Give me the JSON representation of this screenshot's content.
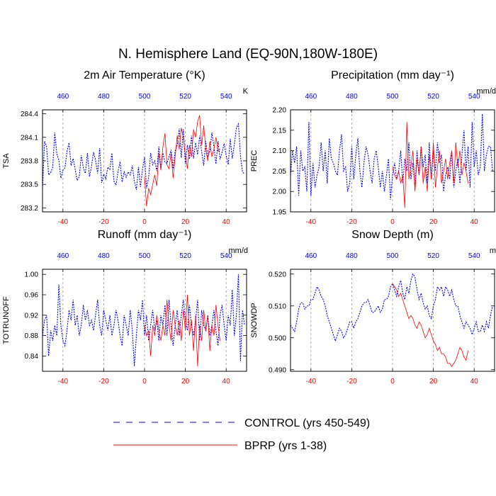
{
  "figure": {
    "title": "N. Hemisphere Land (EQ-90N,180W-180E)"
  },
  "legend": {
    "entries": [
      {
        "label": "CONTROL (yrs 450-549)",
        "color": "#0000ff",
        "dash": true
      },
      {
        "label": "BPRP (yrs 1-38)",
        "color": "#ff0000",
        "dash": false
      }
    ]
  },
  "chart_data": [
    {
      "type": "line",
      "title": "2m Air Temperature (°K)",
      "ylabel": "TSA",
      "unit": "K",
      "xlim": [
        -50,
        50
      ],
      "top_xlim": [
        450,
        550
      ],
      "ylim": [
        283.15,
        284.45
      ],
      "bottom_ticks": [
        "-40",
        "-20",
        "0",
        "20",
        "40"
      ],
      "top_ticks": [
        "460",
        "480",
        "500",
        "520",
        "540"
      ],
      "y_ticks": [
        283.2,
        283.5,
        283.8,
        284.1,
        284.4
      ],
      "y_tick_labels": [
        "283.2",
        "283.5",
        "283.8",
        "284.1",
        "284.4"
      ],
      "control": {
        "name": "CONTROL",
        "x_start": -50,
        "values": [
          283.45,
          284.05,
          283.98,
          283.62,
          283.65,
          283.72,
          284.16,
          283.89,
          283.81,
          283.58,
          283.68,
          283.71,
          283.92,
          284.03,
          283.74,
          283.83,
          283.69,
          283.55,
          283.6,
          283.87,
          283.71,
          283.64,
          283.9,
          283.6,
          283.73,
          283.91,
          283.81,
          283.64,
          283.96,
          283.52,
          283.63,
          283.57,
          283.72,
          283.69,
          283.9,
          283.54,
          283.49,
          283.66,
          283.79,
          283.53,
          283.66,
          283.59,
          283.66,
          283.62,
          283.74,
          283.54,
          283.43,
          283.72,
          283.47,
          283.69,
          283.85,
          283.45,
          283.59,
          283.9,
          283.75,
          283.8,
          283.67,
          283.98,
          283.71,
          283.9,
          283.78,
          283.77,
          283.85,
          283.94,
          283.7,
          283.93,
          284.0,
          284.21,
          283.84,
          284.2,
          283.76,
          284.0,
          283.82,
          284.12,
          283.83,
          284.03,
          283.88,
          284.12,
          283.91,
          283.74,
          284.05,
          283.86,
          283.92,
          284.16,
          283.98,
          283.76,
          284.05,
          283.82,
          283.91,
          284.02,
          283.87,
          283.75,
          284.08,
          283.83,
          284.01,
          284.22,
          284.27,
          283.86,
          283.66,
          283.63
        ]
      },
      "bprp": {
        "name": "BPRP",
        "x_start": 0,
        "values": [
          283.6,
          283.22,
          283.45,
          283.37,
          283.5,
          283.62,
          283.48,
          283.9,
          283.68,
          283.98,
          284.15,
          283.75,
          283.7,
          283.9,
          283.58,
          283.85,
          284.12,
          283.95,
          284.22,
          284.1,
          283.88,
          283.7,
          284.0,
          283.85,
          284.2,
          284.1,
          284.3,
          284.38,
          284.0,
          284.25,
          283.95,
          283.8,
          284.05,
          283.85,
          283.95,
          284.1,
          283.92,
          283.95
        ]
      }
    },
    {
      "type": "line",
      "title": "Precipitation (mm day⁻¹)",
      "ylabel": "PREC",
      "unit": "mm/d",
      "xlim": [
        -50,
        50
      ],
      "top_xlim": [
        450,
        550
      ],
      "ylim": [
        1.95,
        2.2
      ],
      "bottom_ticks": [
        "-40",
        "-20",
        "0",
        "20",
        "40"
      ],
      "top_ticks": [
        "460",
        "480",
        "500",
        "520",
        "540"
      ],
      "y_ticks": [
        1.95,
        2.0,
        2.05,
        2.1,
        2.15,
        2.2
      ],
      "y_tick_labels": [
        "1.95",
        "2.00",
        "2.05",
        "2.10",
        "2.15",
        "2.20"
      ],
      "control": {
        "name": "CONTROL",
        "x_start": -50,
        "values": [
          2.04,
          2.1,
          2.07,
          2.11,
          1.99,
          2.1,
          2.05,
          2.06,
          2.0,
          2.17,
          1.99,
          2.07,
          2.01,
          2.04,
          2.06,
          2.12,
          2.05,
          2.1,
          2.02,
          2.13,
          2.08,
          2.07,
          2.05,
          2.04,
          2.1,
          2.14,
          2.05,
          2.06,
          2.0,
          2.02,
          2.11,
          2.03,
          2.09,
          2.13,
          2.05,
          2.01,
          2.07,
          2.11,
          2.09,
          2.05,
          2.02,
          2.08,
          2.1,
          2.06,
          2.01,
          2.05,
          2.0,
          2.04,
          2.08,
          1.98,
          2.04,
          2.07,
          2.03,
          2.05,
          2.1,
          2.02,
          2.08,
          2.05,
          2.12,
          2.03,
          2.07,
          2.01,
          2.1,
          2.04,
          2.11,
          2.06,
          2.09,
          2.02,
          2.12,
          2.03,
          2.1,
          2.05,
          2.12,
          2.07,
          2.09,
          2.0,
          2.04,
          2.06,
          2.03,
          2.1,
          2.01,
          2.05,
          2.08,
          2.02,
          2.09,
          2.15,
          2.05,
          2.11,
          2.01,
          2.17,
          2.06,
          2.1,
          2.04,
          2.06,
          2.19,
          2.05,
          2.09,
          2.11,
          2.11,
          2.05
        ]
      },
      "bprp": {
        "name": "BPRP",
        "x_start": 0,
        "values": [
          2.06,
          2.04,
          2.03,
          2.05,
          2.02,
          2.04,
          1.96,
          2.17,
          2.03,
          2.06,
          2.1,
          2.0,
          2.08,
          2.04,
          2.11,
          2.02,
          2.06,
          2.0,
          2.09,
          2.03,
          2.12,
          2.01,
          2.06,
          2.1,
          2.02,
          2.05,
          2.08,
          2.03,
          2.07,
          2.1,
          2.02,
          2.12,
          2.06,
          2.1,
          2.04,
          2.07,
          2.05,
          2.02
        ]
      }
    },
    {
      "type": "line",
      "title": "Runoff (mm day⁻¹)",
      "ylabel": "TOTRUNOFF",
      "unit": "mm/d",
      "xlim": [
        -50,
        50
      ],
      "top_xlim": [
        450,
        550
      ],
      "ylim": [
        0.81,
        1.01
      ],
      "bottom_ticks": [
        "-40",
        "-20",
        "0",
        "20",
        "40"
      ],
      "top_ticks": [
        "460",
        "480",
        "500",
        "520",
        "540"
      ],
      "y_ticks": [
        0.84,
        0.88,
        0.92,
        0.96,
        1.0
      ],
      "y_tick_labels": [
        "0.84",
        "0.88",
        "0.92",
        "0.96",
        "1.00"
      ],
      "control": {
        "name": "CONTROL",
        "x_start": -50,
        "values": [
          0.88,
          0.91,
          0.92,
          0.84,
          0.89,
          0.87,
          0.9,
          0.88,
          0.98,
          0.9,
          0.87,
          0.86,
          0.89,
          0.93,
          0.91,
          0.95,
          0.9,
          0.92,
          0.88,
          0.9,
          0.94,
          0.91,
          0.93,
          0.9,
          0.91,
          0.89,
          0.92,
          0.95,
          0.9,
          0.88,
          0.93,
          0.91,
          0.89,
          0.92,
          0.88,
          0.9,
          0.93,
          0.91,
          0.88,
          0.86,
          0.92,
          0.9,
          0.88,
          0.93,
          0.89,
          0.82,
          0.88,
          0.93,
          0.91,
          0.95,
          0.88,
          0.92,
          0.87,
          0.9,
          0.93,
          0.89,
          0.91,
          0.87,
          0.92,
          0.9,
          0.94,
          0.88,
          0.95,
          0.9,
          0.86,
          0.9,
          0.93,
          0.88,
          0.92,
          0.95,
          0.91,
          0.89,
          0.94,
          0.9,
          0.88,
          0.91,
          0.95,
          0.87,
          0.93,
          0.9,
          0.89,
          0.92,
          0.88,
          0.9,
          0.93,
          0.89,
          0.86,
          0.92,
          0.94,
          0.9,
          0.87,
          0.92,
          0.9,
          0.97,
          0.88,
          0.92,
          1.0,
          0.83,
          0.93,
          0.9
        ]
      },
      "bprp": {
        "name": "BPRP",
        "x_start": 0,
        "values": [
          0.9,
          0.88,
          0.89,
          0.84,
          0.9,
          0.88,
          0.92,
          0.89,
          0.87,
          0.9,
          0.88,
          0.95,
          0.9,
          0.87,
          0.93,
          0.9,
          0.88,
          0.91,
          0.87,
          0.93,
          0.89,
          0.96,
          0.88,
          0.91,
          0.85,
          0.92,
          0.82,
          0.9,
          0.87,
          0.93,
          0.89,
          0.92,
          0.85,
          0.9,
          0.88,
          0.94,
          0.9,
          0.87
        ]
      }
    },
    {
      "type": "line",
      "title": "Snow Depth (m)",
      "ylabel": "SNOWDP",
      "unit": "m",
      "xlim": [
        -50,
        50
      ],
      "top_xlim": [
        450,
        550
      ],
      "ylim": [
        0.4895,
        0.5215
      ],
      "bottom_ticks": [
        "-40",
        "-20",
        "0",
        "20",
        "40"
      ],
      "top_ticks": [
        "460",
        "480",
        "500",
        "520",
        "540"
      ],
      "y_ticks": [
        0.49,
        0.5,
        0.51,
        0.52
      ],
      "y_tick_labels": [
        "0.490",
        "0.500",
        "0.510",
        "0.520"
      ],
      "control": {
        "name": "CONTROL",
        "x_start": -50,
        "values": [
          0.504,
          0.503,
          0.502,
          0.505,
          0.509,
          0.511,
          0.511,
          0.509,
          0.51,
          0.51,
          0.512,
          0.512,
          0.514,
          0.516,
          0.515,
          0.513,
          0.512,
          0.51,
          0.507,
          0.505,
          0.503,
          0.501,
          0.499,
          0.501,
          0.503,
          0.502,
          0.5,
          0.501,
          0.503,
          0.505,
          0.505,
          0.503,
          0.505,
          0.506,
          0.508,
          0.51,
          0.511,
          0.511,
          0.512,
          0.51,
          0.508,
          0.508,
          0.509,
          0.51,
          0.508,
          0.509,
          0.512,
          0.512,
          0.513,
          0.516,
          0.517,
          0.515,
          0.513,
          0.516,
          0.518,
          0.514,
          0.512,
          0.516,
          0.514,
          0.518,
          0.52,
          0.519,
          0.515,
          0.512,
          0.514,
          0.511,
          0.509,
          0.51,
          0.507,
          0.506,
          0.51,
          0.512,
          0.516,
          0.515,
          0.516,
          0.513,
          0.516,
          0.515,
          0.513,
          0.515,
          0.512,
          0.51,
          0.51,
          0.507,
          0.505,
          0.503,
          0.505,
          0.504,
          0.503,
          0.501,
          0.503,
          0.505,
          0.502,
          0.502,
          0.504,
          0.502,
          0.505,
          0.503,
          0.507,
          0.51
        ]
      },
      "bprp": {
        "name": "BPRP",
        "x_start": 0,
        "values": [
          0.517,
          0.516,
          0.515,
          0.513,
          0.514,
          0.512,
          0.51,
          0.508,
          0.506,
          0.507,
          0.506,
          0.504,
          0.503,
          0.505,
          0.504,
          0.502,
          0.5,
          0.501,
          0.503,
          0.501,
          0.499,
          0.498,
          0.496,
          0.497,
          0.495,
          0.495,
          0.494,
          0.492,
          0.492,
          0.491,
          0.492,
          0.493,
          0.495,
          0.497,
          0.496,
          0.494,
          0.493,
          0.496
        ]
      }
    }
  ]
}
